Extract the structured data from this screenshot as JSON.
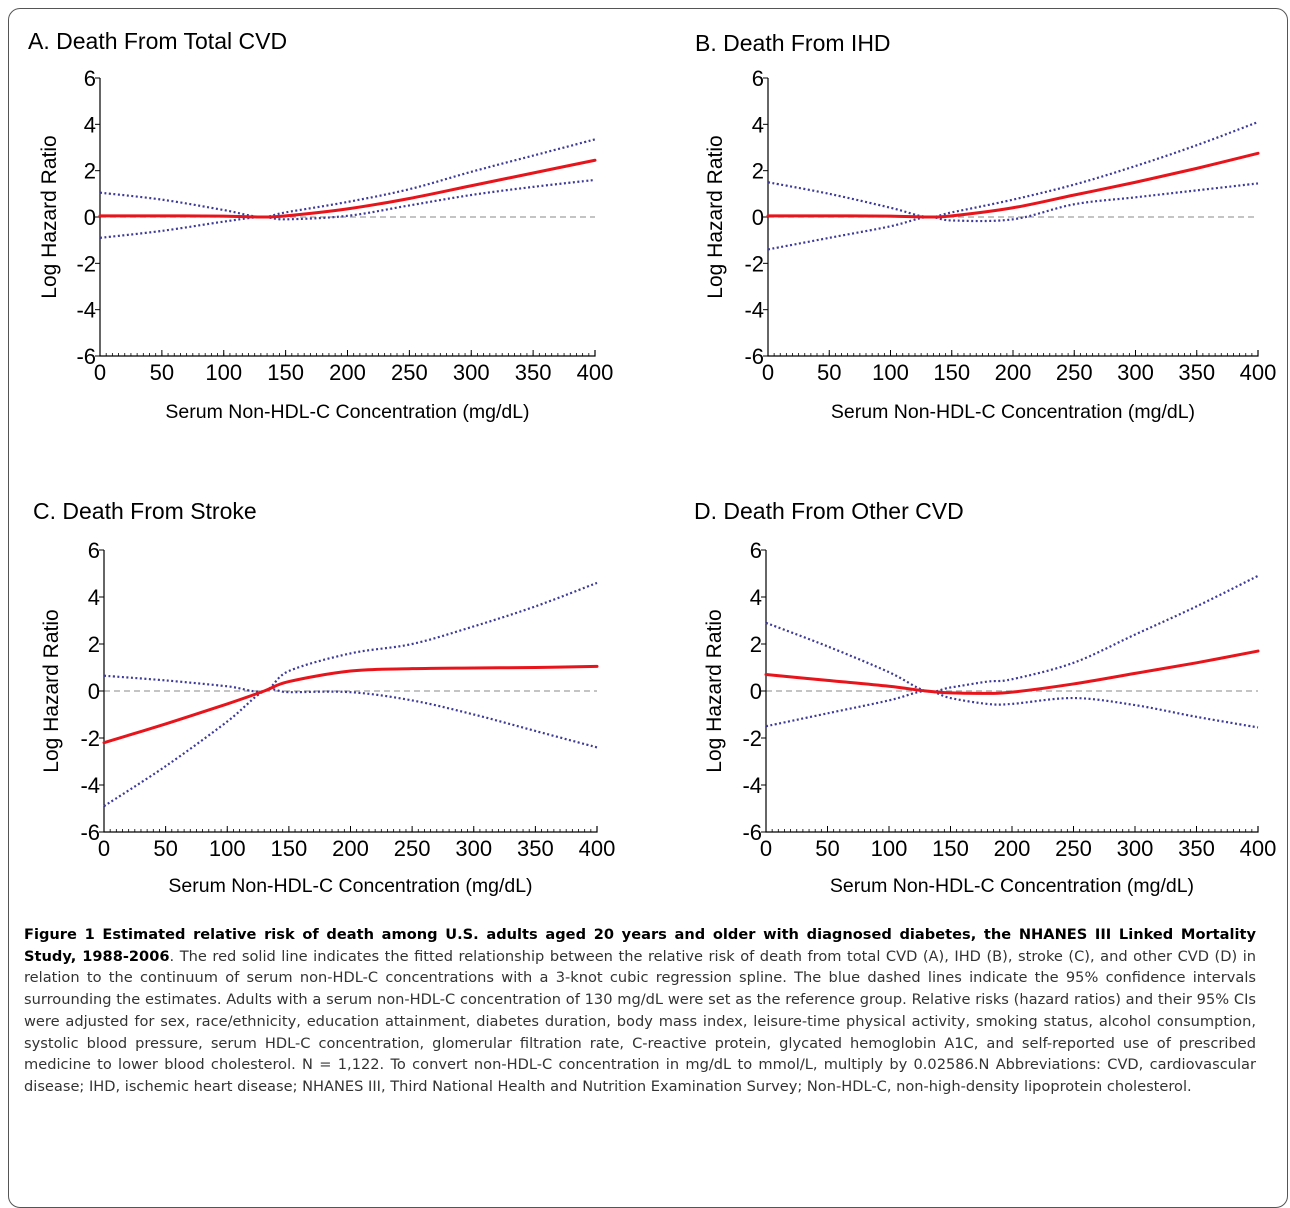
{
  "chart_data": [
    {
      "type": "line",
      "title": "A. Death From Total CVD",
      "xlabel": "Serum Non-HDL-C Concentration (mg/dL)",
      "ylabel": "Log Hazard Ratio",
      "xlim": [
        0,
        400
      ],
      "ylim": [
        -6,
        6
      ],
      "xticks": [
        0,
        50,
        100,
        150,
        200,
        250,
        300,
        350,
        400
      ],
      "yticks": [
        -6,
        -4,
        -2,
        0,
        2,
        4,
        6
      ],
      "reference_line": 0,
      "series": [
        {
          "role": "estimate",
          "x": [
            0,
            50,
            100,
            130,
            150,
            200,
            250,
            300,
            350,
            400
          ],
          "y": [
            0.05,
            0.05,
            0.04,
            0.0,
            0.05,
            0.35,
            0.8,
            1.35,
            1.9,
            2.45
          ]
        },
        {
          "role": "upper_ci",
          "x": [
            0,
            50,
            100,
            130,
            150,
            200,
            250,
            300,
            350,
            400
          ],
          "y": [
            1.05,
            0.75,
            0.3,
            0.0,
            0.2,
            0.65,
            1.2,
            1.95,
            2.65,
            3.35
          ]
        },
        {
          "role": "lower_ci",
          "x": [
            0,
            50,
            100,
            130,
            150,
            200,
            250,
            300,
            350,
            400
          ],
          "y": [
            -0.9,
            -0.6,
            -0.2,
            0.0,
            -0.1,
            0.05,
            0.5,
            0.95,
            1.3,
            1.6
          ]
        }
      ]
    },
    {
      "type": "line",
      "title": "B. Death From IHD",
      "xlabel": "Serum Non-HDL-C Concentration (mg/dL)",
      "ylabel": "Log Hazard Ratio",
      "xlim": [
        0,
        400
      ],
      "ylim": [
        -6,
        6
      ],
      "xticks": [
        0,
        50,
        100,
        150,
        200,
        250,
        300,
        350,
        400
      ],
      "yticks": [
        -6,
        -4,
        -2,
        0,
        2,
        4,
        6
      ],
      "reference_line": 0,
      "series": [
        {
          "role": "estimate",
          "x": [
            0,
            50,
            100,
            130,
            150,
            200,
            250,
            300,
            350,
            400
          ],
          "y": [
            0.05,
            0.05,
            0.04,
            0.0,
            0.05,
            0.4,
            0.95,
            1.5,
            2.1,
            2.75
          ]
        },
        {
          "role": "upper_ci",
          "x": [
            0,
            50,
            100,
            130,
            150,
            200,
            250,
            300,
            350,
            400
          ],
          "y": [
            1.5,
            1.0,
            0.4,
            0.0,
            0.2,
            0.75,
            1.4,
            2.2,
            3.1,
            4.1
          ]
        },
        {
          "role": "lower_ci",
          "x": [
            0,
            50,
            100,
            130,
            150,
            200,
            250,
            300,
            350,
            400
          ],
          "y": [
            -1.4,
            -0.9,
            -0.4,
            0.0,
            -0.15,
            -0.1,
            0.55,
            0.85,
            1.15,
            1.45
          ]
        }
      ]
    },
    {
      "type": "line",
      "title": "C. Death From Stroke",
      "xlabel": "Serum Non-HDL-C Concentration (mg/dL)",
      "ylabel": "Log Hazard Ratio",
      "xlim": [
        0,
        400
      ],
      "ylim": [
        -6,
        6
      ],
      "xticks": [
        0,
        50,
        100,
        150,
        200,
        250,
        300,
        350,
        400
      ],
      "yticks": [
        -6,
        -4,
        -2,
        0,
        2,
        4,
        6
      ],
      "reference_line": 0,
      "series": [
        {
          "role": "estimate",
          "x": [
            0,
            50,
            100,
            130,
            150,
            200,
            250,
            300,
            350,
            400
          ],
          "y": [
            -2.2,
            -1.4,
            -0.55,
            0.0,
            0.4,
            0.85,
            0.95,
            0.98,
            1.0,
            1.05
          ]
        },
        {
          "role": "upper_ci",
          "x": [
            0,
            50,
            100,
            130,
            150,
            200,
            250,
            300,
            350,
            400
          ],
          "y": [
            0.65,
            0.45,
            0.2,
            0.0,
            0.85,
            1.6,
            2.0,
            2.75,
            3.6,
            4.6
          ]
        },
        {
          "role": "lower_ci",
          "x": [
            0,
            50,
            100,
            130,
            150,
            200,
            250,
            300,
            350,
            400
          ],
          "y": [
            -4.9,
            -3.2,
            -1.3,
            0.0,
            -0.05,
            -0.05,
            -0.4,
            -1.0,
            -1.7,
            -2.4
          ]
        }
      ]
    },
    {
      "type": "line",
      "title": "D. Death From Other CVD",
      "xlabel": "Serum Non-HDL-C Concentration (mg/dL)",
      "ylabel": "Log Hazard Ratio",
      "xlim": [
        0,
        400
      ],
      "ylim": [
        -6,
        6
      ],
      "xticks": [
        0,
        50,
        100,
        150,
        200,
        250,
        300,
        350,
        400
      ],
      "yticks": [
        -6,
        -4,
        -2,
        0,
        2,
        4,
        6
      ],
      "reference_line": 0,
      "series": [
        {
          "role": "estimate",
          "x": [
            0,
            50,
            100,
            130,
            150,
            180,
            200,
            250,
            300,
            350,
            400
          ],
          "y": [
            0.7,
            0.45,
            0.2,
            0.0,
            -0.08,
            -0.1,
            -0.05,
            0.3,
            0.75,
            1.2,
            1.7
          ]
        },
        {
          "role": "upper_ci",
          "x": [
            0,
            50,
            100,
            130,
            150,
            180,
            200,
            250,
            300,
            350,
            400
          ],
          "y": [
            2.9,
            1.9,
            0.8,
            0.0,
            0.15,
            0.4,
            0.5,
            1.2,
            2.4,
            3.6,
            4.9
          ]
        },
        {
          "role": "lower_ci",
          "x": [
            0,
            50,
            100,
            130,
            150,
            180,
            200,
            250,
            300,
            350,
            400
          ],
          "y": [
            -1.5,
            -0.95,
            -0.4,
            0.0,
            -0.3,
            -0.55,
            -0.55,
            -0.3,
            -0.6,
            -1.1,
            -1.55
          ]
        }
      ]
    }
  ],
  "styles": {
    "estimate_color": "#e8141b",
    "ci_color": "#3d3a9a",
    "ref_color": "#a0a0a0"
  },
  "caption": {
    "lead": "Figure 1 Estimated relative risk of death among U.S. adults aged 20 years and older with diagnosed diabetes, the NHANES III Linked Mortality Study, 1988-2006",
    "body": ". The red solid line indicates the fitted relationship between the relative risk of death from total CVD (A), IHD (B), stroke (C), and other CVD (D) in relation to the continuum of serum non-HDL-C concentrations with a 3-knot cubic regression spline. The blue dashed lines indicate the 95% confidence intervals surrounding the estimates. Adults with a serum non-HDL-C concentration of 130 mg/dL were set as the reference group. Relative risks (hazard ratios) and their 95% CIs were adjusted for sex, race/ethnicity, education attainment, diabetes duration, body mass index, leisure-time physical activity, smoking status, alcohol consumption, systolic blood pressure, serum HDL-C concentration, glomerular filtration rate, C-reactive protein, glycated hemoglobin A1C, and self-reported use of prescribed medicine to lower blood cholesterol. N = 1,122. To convert non-HDL-C concentration in mg/dL to mmol/L, multiply by 0.02586.N Abbreviations: CVD, cardiovascular disease; IHD, ischemic heart disease; NHANES III, Third National Health and Nutrition Examination Survey; Non-HDL-C, non-high-density lipoprotein cholesterol."
  }
}
